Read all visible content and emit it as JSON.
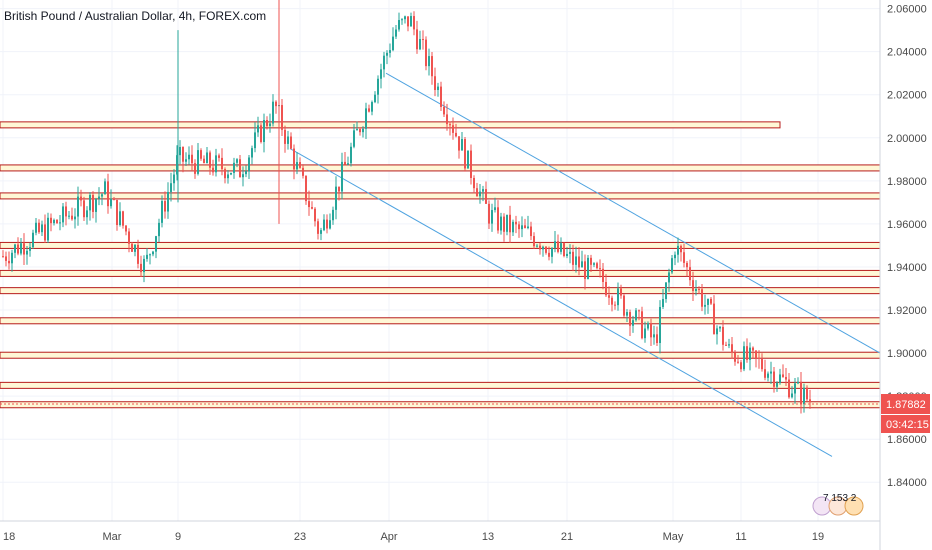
{
  "title": "British Pound / Australian Dollar, 4h, FOREX.com",
  "price_axis": {
    "ticks": [
      "2.06000",
      "2.04000",
      "2.02000",
      "2.00000",
      "1.98000",
      "1.96000",
      "1.94000",
      "1.92000",
      "1.90000",
      "1.88000",
      "1.86000",
      "1.84000"
    ]
  },
  "time_axis": {
    "ticks": [
      "18",
      "Mar",
      "9",
      "23",
      "Apr",
      "13",
      "21",
      "May",
      "11",
      "19"
    ]
  },
  "last_price": {
    "value": "1.87882",
    "countdown": "03:42:15",
    "color": "#ef5350"
  },
  "events_badge": {
    "label": "7 153 2"
  },
  "colors": {
    "up": "#26a69a",
    "down": "#ef5350",
    "support": "#b71c1c",
    "zone_fill": "#fff7d6",
    "channel": "#4fa3e0"
  },
  "chart_data": {
    "type": "candlestick",
    "symbol": "GBPAUD",
    "interval": "4h",
    "ylim": [
      1.822,
      2.064
    ],
    "support_resistance_levels": [
      2.006,
      1.986,
      1.973,
      1.95,
      1.937,
      1.929,
      1.915,
      1.899,
      1.885,
      1.876
    ],
    "channel_upper": {
      "from": [
        "Apr",
        2.03
      ],
      "to": [
        "19",
        1.9
      ]
    },
    "channel_lower": {
      "from": [
        "23",
        1.995
      ],
      "to": [
        "19",
        1.852
      ]
    },
    "price_path": [
      [
        "18",
        1.945
      ],
      [
        "Mar",
        1.975
      ],
      [
        "Mar",
        1.94
      ],
      [
        "9",
        1.99
      ],
      [
        "9",
        1.985
      ],
      [
        "23",
        2.015
      ],
      [
        "23",
        1.955
      ],
      [
        "Apr",
        2.05
      ],
      [
        "Apr",
        2.055
      ],
      [
        "13",
        1.965
      ],
      [
        "13",
        1.96
      ],
      [
        "21",
        1.955
      ],
      [
        "21",
        1.935
      ],
      [
        "May",
        1.905
      ],
      [
        "May",
        1.95
      ],
      [
        "11",
        1.9
      ],
      [
        "11",
        1.895
      ],
      [
        "19",
        1.878
      ]
    ]
  }
}
